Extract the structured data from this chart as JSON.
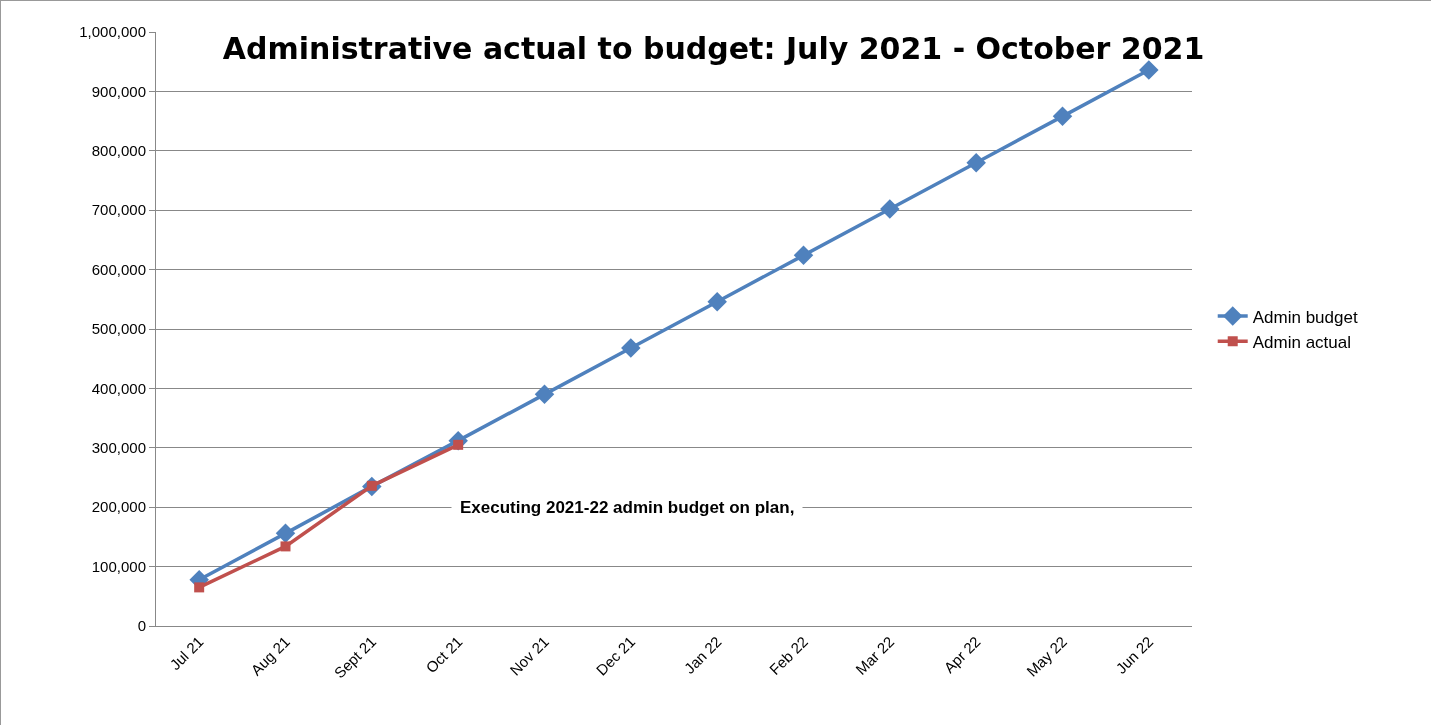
{
  "chart_data": {
    "type": "line",
    "title": "Administrative actual to budget: July 2021 - October 2021",
    "categories": [
      "Jul 21",
      "Aug 21",
      "Sept 21",
      "Oct 21",
      "Nov 21",
      "Dec 21",
      "Jan 22",
      "Feb 22",
      "Mar 22",
      "Apr 22",
      "May 22",
      "Jun 22"
    ],
    "series": [
      {
        "name": "Admin budget",
        "color": "#4f81bd",
        "marker": "diamond",
        "values": [
          78000,
          156000,
          235000,
          312000,
          390000,
          468000,
          546000,
          624000,
          702000,
          780000,
          858000,
          936000
        ]
      },
      {
        "name": "Admin actual",
        "color": "#c0504d",
        "marker": "square",
        "values": [
          65000,
          134000,
          236000,
          305000,
          null,
          null,
          null,
          null,
          null,
          null,
          null,
          null
        ]
      }
    ],
    "ylim": [
      0,
      1000000
    ],
    "yticks": [
      {
        "value": 0,
        "label": "0"
      },
      {
        "value": 100000,
        "label": "100,000"
      },
      {
        "value": 200000,
        "label": "200,000"
      },
      {
        "value": 300000,
        "label": "300,000"
      },
      {
        "value": 400000,
        "label": "400,000"
      },
      {
        "value": 500000,
        "label": "500,000"
      },
      {
        "value": 600000,
        "label": "600,000"
      },
      {
        "value": 700000,
        "label": "700,000"
      },
      {
        "value": 800000,
        "label": "800,000"
      },
      {
        "value": 900000,
        "label": "900,000"
      },
      {
        "value": 1000000,
        "label": "1,000,000"
      }
    ],
    "grid": "y",
    "legend": "right",
    "line_style": "solid",
    "annotations": [
      "Executing 2021-22 admin budget on plan,"
    ]
  }
}
